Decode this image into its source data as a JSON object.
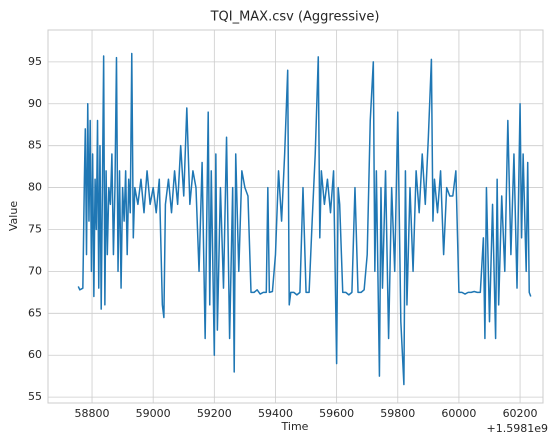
{
  "chart_data": {
    "type": "line",
    "title": "TQI_MAX.csv (Aggressive)",
    "x_label": "Time",
    "y_label": "Value",
    "x_offset_label": "+1.5981e9",
    "x": [
      58755,
      58760,
      58770,
      58775,
      58778,
      58782,
      58786,
      58790,
      58794,
      58798,
      58802,
      58806,
      58810,
      58814,
      58818,
      58822,
      58826,
      58830,
      58834,
      58838,
      58842,
      58846,
      58850,
      58855,
      58860,
      58865,
      58870,
      58875,
      58880,
      58885,
      58890,
      58895,
      58900,
      58905,
      58910,
      58915,
      58920,
      58925,
      58930,
      58935,
      58940,
      58950,
      58960,
      58970,
      58980,
      58990,
      59000,
      59010,
      59020,
      59030,
      59035,
      59040,
      59050,
      59060,
      59070,
      59080,
      59090,
      59100,
      59110,
      59120,
      59130,
      59140,
      59150,
      59160,
      59170,
      59180,
      59185,
      59190,
      59200,
      59205,
      59210,
      59220,
      59230,
      59240,
      59250,
      59260,
      59265,
      59270,
      59280,
      59290,
      59300,
      59310,
      59320,
      59330,
      59340,
      59350,
      59360,
      59370,
      59375,
      59380,
      59390,
      59400,
      59410,
      59420,
      59430,
      59440,
      59445,
      59450,
      59460,
      59470,
      59480,
      59490,
      59500,
      59510,
      59520,
      59530,
      59540,
      59545,
      59550,
      59560,
      59570,
      59580,
      59590,
      59600,
      59605,
      59610,
      59620,
      59630,
      59640,
      59650,
      59660,
      59670,
      59680,
      59690,
      59700,
      59710,
      59720,
      59725,
      59730,
      59740,
      59745,
      59750,
      59760,
      59770,
      59780,
      59790,
      59800,
      59810,
      59820,
      59825,
      59830,
      59840,
      59850,
      59860,
      59870,
      59880,
      59890,
      59900,
      59910,
      59915,
      59920,
      59930,
      59940,
      59950,
      59960,
      59970,
      59980,
      59990,
      60000,
      60010,
      60020,
      60030,
      60040,
      60050,
      60060,
      60070,
      60080,
      60085,
      60090,
      60100,
      60110,
      60120,
      60125,
      60130,
      60140,
      60150,
      60160,
      60170,
      60180,
      60190,
      60200,
      60205,
      60210,
      60220,
      60225,
      60230,
      60235
    ],
    "values": [
      68.2,
      67.8,
      68,
      81,
      87,
      72,
      90,
      76,
      88,
      70,
      84,
      67,
      81,
      75,
      88,
      68,
      85,
      65.5,
      80,
      95.7,
      66,
      82,
      72,
      80,
      78,
      84,
      72,
      80,
      95.5,
      70,
      82,
      68,
      80,
      76,
      82,
      72,
      81,
      77,
      96,
      74,
      80,
      78,
      81,
      77,
      82,
      78,
      80,
      77,
      81,
      66,
      64.5,
      78,
      81,
      77,
      82,
      78,
      85,
      79,
      89.5,
      78,
      82,
      80,
      70,
      83,
      62,
      89,
      66,
      82,
      60,
      84,
      63,
      80,
      68,
      86,
      62,
      80,
      58,
      84,
      70,
      82,
      80,
      79,
      67.5,
      67.5,
      67.8,
      67.3,
      67.5,
      67.5,
      80,
      67.5,
      67.6,
      72,
      82,
      76,
      84,
      94,
      66,
      67.5,
      67.5,
      67.2,
      67.5,
      80,
      67.5,
      67.5,
      76,
      84,
      95.6,
      74,
      82,
      78,
      81,
      77,
      82,
      59,
      80,
      78,
      67.5,
      67.5,
      67.2,
      67.5,
      80,
      67.5,
      67.5,
      67.8,
      72,
      88,
      95,
      70,
      82,
      57.5,
      80,
      68,
      82,
      62,
      80,
      70,
      89,
      64,
      56.5,
      82,
      66,
      80,
      70,
      82,
      77,
      84,
      78,
      86,
      95.3,
      76,
      81,
      77,
      82,
      72,
      80,
      79,
      79,
      82,
      67.5,
      67.5,
      67.3,
      67.5,
      67.5,
      67.6,
      67.5,
      67.5,
      74,
      62,
      80,
      64,
      78,
      62,
      81,
      66,
      79,
      70,
      88,
      72,
      84,
      68,
      90,
      74,
      84,
      70,
      83,
      67.5,
      67
    ],
    "color": "#1f77b4",
    "xlim": [
      58656,
      60275
    ],
    "ylim": [
      54.3,
      98.8
    ],
    "xticks": [
      58800,
      59000,
      59200,
      59400,
      59600,
      59800,
      60000,
      60200
    ],
    "yticks": [
      55,
      60,
      65,
      70,
      75,
      80,
      85,
      90,
      95
    ],
    "grid": true
  }
}
